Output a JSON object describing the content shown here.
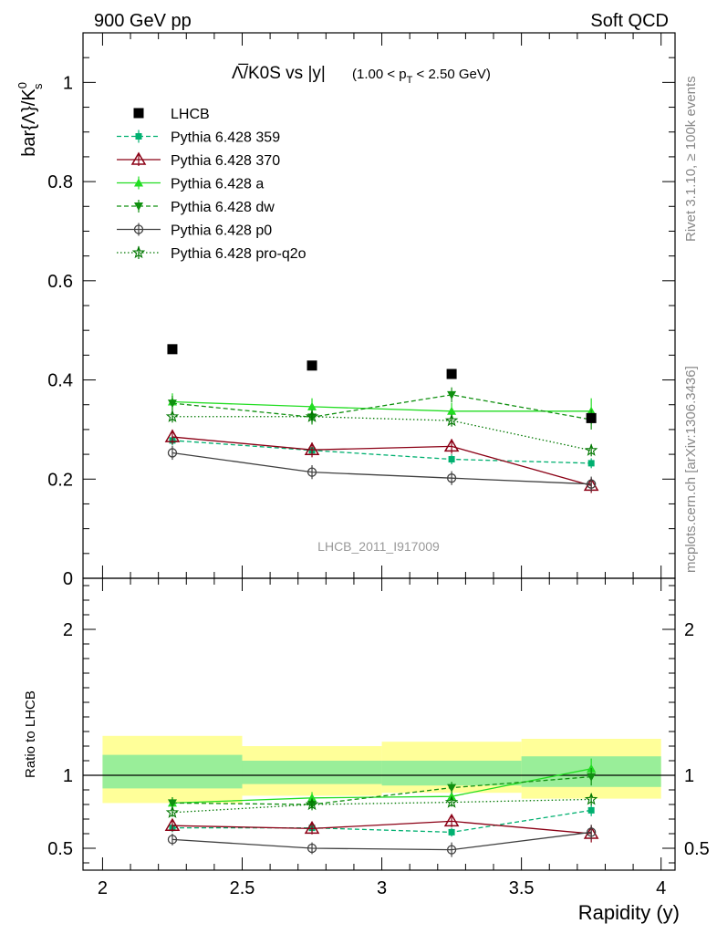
{
  "header": {
    "left_label": "900 GeV pp",
    "right_label": "Soft QCD"
  },
  "side_labels": {
    "rivet": "Rivet 3.1.10, ≥ 100k events",
    "mcplots": "mcplots.cern.ch [arXiv:1306.3436]"
  },
  "analysis_id": "LHCB_2011_I917009",
  "colors": {
    "lhcb": "#000000",
    "p359": "#00b070",
    "p370": "#8b0015",
    "pa": "#22dd22",
    "pdw": "#109010",
    "pp0": "#404040",
    "pq2o": "#007700",
    "band_yellow": "#ffff99",
    "band_green": "#99ee99"
  },
  "chart_data": [
    {
      "type": "scatter",
      "title": "Λ̅/K0S vs |y|",
      "title_cut": "(1.00 < p",
      "title_cut_sub": "T",
      "title_cut_end": " < 2.50 GeV)",
      "ylabel": "bar{Λ}/K",
      "ylabel_sup": "0",
      "ylabel_sub": "s",
      "xlim": [
        1.93,
        4.05
      ],
      "ylim": [
        0.0,
        1.1
      ],
      "yticks": [
        0,
        0.2,
        0.4,
        0.6,
        0.8,
        1
      ],
      "ytick_labels": [
        "0",
        "0.2",
        "0.4",
        "0.6",
        "0.8",
        "1"
      ],
      "x": [
        2.25,
        2.75,
        3.25,
        3.75
      ],
      "series": [
        {
          "key": "lhcb",
          "name": "LHCB",
          "values": [
            0.462,
            0.429,
            0.412,
            0.323
          ],
          "errors": [
            0,
            0,
            0,
            0
          ],
          "marker": "square",
          "line": "none"
        },
        {
          "key": "p359",
          "name": "Pythia 6.428 359",
          "values": [
            0.278,
            0.258,
            0.24,
            0.232
          ],
          "errors": [
            0.01,
            0.01,
            0.01,
            0.01
          ],
          "marker": "smallsquare",
          "line": "dashed"
        },
        {
          "key": "p370",
          "name": "Pythia 6.428 370",
          "values": [
            0.285,
            0.259,
            0.266,
            0.187
          ],
          "errors": [
            0.015,
            0.015,
            0.015,
            0.015
          ],
          "marker": "opentriangle",
          "line": "solid"
        },
        {
          "key": "pa",
          "name": "Pythia 6.428 a",
          "values": [
            0.356,
            0.346,
            0.337,
            0.337
          ],
          "errors": [
            0.017,
            0.017,
            0.017,
            0.026
          ],
          "marker": "triangle",
          "line": "solid"
        },
        {
          "key": "pdw",
          "name": "Pythia 6.428 dw",
          "values": [
            0.353,
            0.325,
            0.37,
            0.32
          ],
          "errors": [
            0.015,
            0.015,
            0.015,
            0.02
          ],
          "marker": "triangledown",
          "line": "dashed"
        },
        {
          "key": "pp0",
          "name": "Pythia 6.428 p0",
          "values": [
            0.253,
            0.214,
            0.202,
            0.19
          ],
          "errors": [
            0.014,
            0.014,
            0.014,
            0.015
          ],
          "marker": "opencircle",
          "line": "solid"
        },
        {
          "key": "pq2o",
          "name": "Pythia 6.428 pro-q2o",
          "values": [
            0.326,
            0.326,
            0.318,
            0.258
          ],
          "errors": [
            0.012,
            0.012,
            0.012,
            0.012
          ],
          "marker": "star",
          "line": "dotted"
        }
      ]
    },
    {
      "type": "scatter",
      "ylabel": "Ratio to LHCB",
      "xlabel": "Rapidity (y)",
      "xlim": [
        1.93,
        4.05
      ],
      "ylim": [
        0.35,
        2.35
      ],
      "yticks": [
        0.5,
        1,
        2
      ],
      "ytick_labels": [
        "0.5",
        "1",
        "2"
      ],
      "xticks": [
        2,
        2.5,
        3,
        3.5,
        4
      ],
      "xtick_labels": [
        "2",
        "2.5",
        "3",
        "3.5",
        "4"
      ],
      "bands": [
        {
          "x0": 2.0,
          "x1": 2.5,
          "yellow": [
            0.81,
            1.27
          ],
          "green": [
            0.91,
            1.14
          ]
        },
        {
          "x0": 2.5,
          "x1": 3.0,
          "yellow": [
            0.86,
            1.2
          ],
          "green": [
            0.94,
            1.1
          ]
        },
        {
          "x0": 3.0,
          "x1": 3.5,
          "yellow": [
            0.88,
            1.23
          ],
          "green": [
            0.93,
            1.1
          ]
        },
        {
          "x0": 3.5,
          "x1": 4.0,
          "yellow": [
            0.84,
            1.25
          ],
          "green": [
            0.92,
            1.13
          ]
        }
      ],
      "x": [
        2.25,
        2.75,
        3.25,
        3.75
      ],
      "series": [
        {
          "key": "p359",
          "values": [
            0.64,
            0.64,
            0.61,
            0.76
          ],
          "errors": [
            0.03,
            0.03,
            0.03,
            0.04
          ]
        },
        {
          "key": "p370",
          "values": [
            0.655,
            0.635,
            0.685,
            0.6
          ],
          "errors": [
            0.04,
            0.04,
            0.04,
            0.06
          ]
        },
        {
          "key": "pa",
          "values": [
            0.81,
            0.845,
            0.855,
            1.045
          ],
          "errors": [
            0.04,
            0.04,
            0.04,
            0.07
          ]
        },
        {
          "key": "pdw",
          "values": [
            0.81,
            0.8,
            0.915,
            0.99
          ],
          "errors": [
            0.04,
            0.04,
            0.04,
            0.06
          ]
        },
        {
          "key": "pp0",
          "values": [
            0.56,
            0.5,
            0.49,
            0.61
          ],
          "errors": [
            0.04,
            0.04,
            0.05,
            0.05
          ]
        },
        {
          "key": "pq2o",
          "values": [
            0.745,
            0.8,
            0.815,
            0.835
          ],
          "errors": [
            0.03,
            0.03,
            0.03,
            0.04
          ]
        }
      ]
    }
  ]
}
